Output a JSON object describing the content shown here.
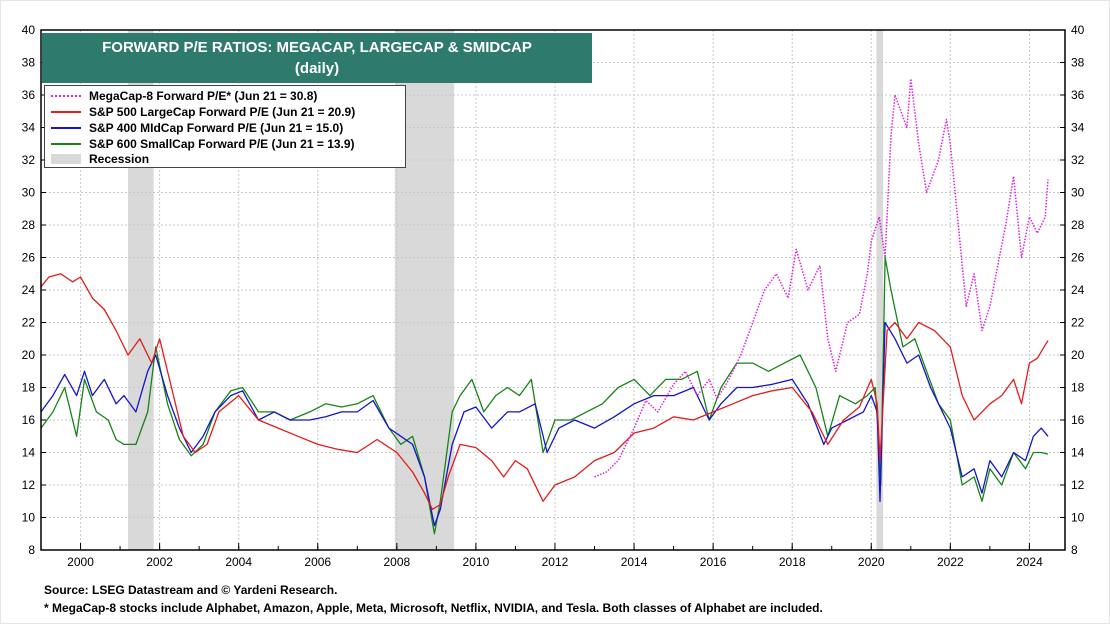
{
  "chart_data": {
    "type": "line",
    "title": "FORWARD P/E RATIOS: MEGACAP, LARGECAP & SMIDCAP",
    "subtitle": "(daily)",
    "xlim": [
      1999,
      2024.9
    ],
    "ylim": [
      8,
      40
    ],
    "x_ticks": [
      "2000",
      "2002",
      "2004",
      "2006",
      "2008",
      "2010",
      "2012",
      "2014",
      "2016",
      "2018",
      "2020",
      "2022",
      "2024"
    ],
    "x_tick_values": [
      2000,
      2002,
      2004,
      2006,
      2008,
      2010,
      2012,
      2014,
      2016,
      2018,
      2020,
      2022,
      2024
    ],
    "y_ticks": [
      8,
      10,
      12,
      14,
      16,
      18,
      20,
      22,
      24,
      26,
      28,
      30,
      32,
      34,
      36,
      38,
      40
    ],
    "grid": true,
    "legend_position": "top-left",
    "recessions": [
      [
        2001.2,
        2001.85
      ],
      [
        2007.95,
        2009.45
      ],
      [
        2020.13,
        2020.3
      ]
    ],
    "series": [
      {
        "name": "MegaCap-8 Forward P/E* (Jun 21 = 30.8)",
        "color": "#dd22dd",
        "style": "dotted",
        "x": [
          2013.0,
          2013.3,
          2013.6,
          2014.0,
          2014.3,
          2014.6,
          2015.0,
          2015.3,
          2015.6,
          2015.9,
          2016.1,
          2016.4,
          2016.7,
          2017.0,
          2017.3,
          2017.6,
          2017.9,
          2018.1,
          2018.4,
          2018.7,
          2018.9,
          2019.1,
          2019.4,
          2019.7,
          2019.9,
          2020.0,
          2020.2,
          2020.35,
          2020.5,
          2020.6,
          2020.75,
          2020.9,
          2021.0,
          2021.2,
          2021.4,
          2021.7,
          2021.9,
          2022.0,
          2022.2,
          2022.4,
          2022.6,
          2022.8,
          2023.0,
          2023.2,
          2023.4,
          2023.6,
          2023.8,
          2024.0,
          2024.2,
          2024.4,
          2024.47
        ],
        "y": [
          12.5,
          12.8,
          13.5,
          15.5,
          17.2,
          16.5,
          18.2,
          19.0,
          17.5,
          18.5,
          17.3,
          18.5,
          20.0,
          22.0,
          24.0,
          25.0,
          23.5,
          26.5,
          24.0,
          25.5,
          21.0,
          19.0,
          22.0,
          22.5,
          25.0,
          27.0,
          28.5,
          26.0,
          33.5,
          36.0,
          35.0,
          34.0,
          37.0,
          33.0,
          30.0,
          32.0,
          34.5,
          33.0,
          28.0,
          23.0,
          25.0,
          21.5,
          23.0,
          25.5,
          28.0,
          31.0,
          26.0,
          28.5,
          27.5,
          28.5,
          30.8
        ]
      },
      {
        "name": "S&P 500 LargeCap Forward P/E (Jun 21 = 20.9)",
        "color": "#e11d1d",
        "style": "solid",
        "x": [
          1999.0,
          1999.2,
          1999.5,
          1999.8,
          2000.0,
          2000.3,
          2000.6,
          2000.9,
          2001.2,
          2001.5,
          2001.8,
          2002.0,
          2002.3,
          2002.6,
          2002.9,
          2003.2,
          2003.5,
          2004.0,
          2004.5,
          2005.0,
          2005.5,
          2006.0,
          2006.5,
          2007.0,
          2007.5,
          2008.0,
          2008.4,
          2008.7,
          2008.9,
          2009.1,
          2009.3,
          2009.6,
          2010.0,
          2010.4,
          2010.7,
          2011.0,
          2011.3,
          2011.7,
          2012.0,
          2012.5,
          2013.0,
          2013.5,
          2014.0,
          2014.5,
          2015.0,
          2015.5,
          2016.0,
          2016.5,
          2017.0,
          2017.5,
          2018.0,
          2018.5,
          2018.9,
          2019.3,
          2019.7,
          2020.0,
          2020.15,
          2020.22,
          2020.4,
          2020.6,
          2020.9,
          2021.2,
          2021.6,
          2022.0,
          2022.3,
          2022.6,
          2022.8,
          2023.0,
          2023.3,
          2023.6,
          2023.8,
          2024.0,
          2024.2,
          2024.47
        ],
        "y": [
          24.2,
          24.8,
          25.0,
          24.5,
          24.8,
          23.5,
          22.8,
          21.5,
          20.0,
          21.0,
          19.5,
          21.0,
          18.0,
          15.0,
          14.0,
          14.5,
          16.5,
          17.5,
          16.0,
          15.5,
          15.0,
          14.5,
          14.2,
          14.0,
          14.8,
          14.0,
          12.8,
          11.5,
          10.5,
          10.8,
          12.5,
          14.5,
          14.3,
          13.5,
          12.5,
          13.5,
          13.0,
          11.0,
          12.0,
          12.5,
          13.5,
          14.0,
          15.2,
          15.5,
          16.2,
          16.0,
          16.5,
          17.0,
          17.5,
          17.8,
          18.0,
          16.5,
          14.5,
          16.0,
          16.8,
          18.5,
          17.0,
          13.5,
          21.5,
          22.0,
          21.0,
          22.0,
          21.5,
          20.5,
          17.5,
          16.0,
          16.5,
          17.0,
          17.5,
          18.5,
          17.0,
          19.5,
          19.8,
          20.9
        ]
      },
      {
        "name": "S&P 400 MidCap Forward P/E (Jun 21 = 15.0)",
        "color": "#1414cc",
        "style": "solid",
        "x": [
          1999.0,
          1999.3,
          1999.6,
          1999.9,
          2000.1,
          2000.3,
          2000.6,
          2000.9,
          2001.1,
          2001.4,
          2001.7,
          2001.9,
          2002.2,
          2002.5,
          2002.8,
          2003.1,
          2003.4,
          2003.8,
          2004.1,
          2004.5,
          2004.9,
          2005.3,
          2005.8,
          2006.2,
          2006.6,
          2007.0,
          2007.4,
          2007.8,
          2008.1,
          2008.4,
          2008.7,
          2008.95,
          2009.1,
          2009.4,
          2009.7,
          2010.0,
          2010.4,
          2010.8,
          2011.1,
          2011.5,
          2011.8,
          2012.1,
          2012.5,
          2013.0,
          2013.5,
          2014.0,
          2014.5,
          2015.0,
          2015.5,
          2015.9,
          2016.2,
          2016.6,
          2017.0,
          2017.5,
          2018.0,
          2018.4,
          2018.8,
          2019.0,
          2019.4,
          2019.8,
          2020.0,
          2020.15,
          2020.22,
          2020.35,
          2020.6,
          2020.9,
          2021.2,
          2021.5,
          2021.8,
          2022.0,
          2022.3,
          2022.6,
          2022.8,
          2023.0,
          2023.3,
          2023.6,
          2023.9,
          2024.1,
          2024.3,
          2024.47
        ],
        "y": [
          16.5,
          17.5,
          18.8,
          17.5,
          19.0,
          17.5,
          18.5,
          17.0,
          17.5,
          16.5,
          19.0,
          20.0,
          17.5,
          15.5,
          14.0,
          15.0,
          16.5,
          17.5,
          17.8,
          16.0,
          16.5,
          16.0,
          16.0,
          16.2,
          16.5,
          16.5,
          17.2,
          15.5,
          15.0,
          14.5,
          12.5,
          9.5,
          10.5,
          14.5,
          16.5,
          16.8,
          15.5,
          16.5,
          16.5,
          17.0,
          14.0,
          15.5,
          16.0,
          15.5,
          16.2,
          17.0,
          17.5,
          17.5,
          18.0,
          16.0,
          17.0,
          18.0,
          18.0,
          18.2,
          18.5,
          17.0,
          14.5,
          15.5,
          16.0,
          16.5,
          17.5,
          16.5,
          11.0,
          22.0,
          21.0,
          19.5,
          20.0,
          18.0,
          16.5,
          15.5,
          12.5,
          13.0,
          11.5,
          13.5,
          12.5,
          14.0,
          13.5,
          15.0,
          15.5,
          15.0
        ]
      },
      {
        "name": "S&P 600 SmallCap Forward P/E (Jun 21 = 13.9)",
        "color": "#178417",
        "style": "solid",
        "x": [
          1999.0,
          1999.3,
          1999.6,
          1999.9,
          2000.1,
          2000.4,
          2000.7,
          2000.9,
          2001.1,
          2001.4,
          2001.7,
          2001.9,
          2002.2,
          2002.5,
          2002.8,
          2003.1,
          2003.4,
          2003.8,
          2004.1,
          2004.5,
          2004.9,
          2005.3,
          2005.8,
          2006.2,
          2006.6,
          2007.0,
          2007.4,
          2007.8,
          2008.1,
          2008.4,
          2008.7,
          2008.95,
          2009.1,
          2009.4,
          2009.6,
          2009.9,
          2010.2,
          2010.5,
          2010.8,
          2011.1,
          2011.4,
          2011.7,
          2012.0,
          2012.4,
          2012.8,
          2013.2,
          2013.6,
          2014.0,
          2014.4,
          2014.8,
          2015.2,
          2015.6,
          2015.9,
          2016.2,
          2016.6,
          2017.0,
          2017.4,
          2017.8,
          2018.2,
          2018.6,
          2018.9,
          2019.2,
          2019.6,
          2019.9,
          2020.1,
          2020.18,
          2020.24,
          2020.35,
          2020.5,
          2020.8,
          2021.1,
          2021.4,
          2021.7,
          2022.0,
          2022.3,
          2022.6,
          2022.8,
          2023.0,
          2023.3,
          2023.6,
          2023.9,
          2024.1,
          2024.3,
          2024.47
        ],
        "y": [
          15.5,
          16.5,
          18.0,
          15.0,
          18.5,
          16.5,
          16.0,
          14.8,
          14.5,
          14.5,
          16.5,
          20.5,
          17.0,
          14.8,
          13.8,
          14.5,
          16.5,
          17.8,
          18.0,
          16.5,
          16.5,
          16.0,
          16.5,
          17.0,
          16.8,
          17.0,
          17.5,
          15.5,
          14.5,
          15.0,
          12.5,
          9.0,
          11.0,
          16.5,
          17.5,
          18.5,
          16.5,
          17.5,
          18.0,
          17.5,
          18.5,
          14.0,
          16.0,
          16.0,
          16.5,
          17.0,
          18.0,
          18.5,
          17.5,
          18.5,
          18.5,
          19.0,
          16.0,
          18.0,
          19.5,
          19.5,
          19.0,
          19.5,
          20.0,
          18.0,
          15.0,
          17.5,
          17.0,
          17.5,
          18.0,
          15.0,
          12.0,
          26.0,
          24.0,
          20.5,
          21.0,
          19.0,
          17.0,
          16.0,
          12.0,
          12.5,
          11.0,
          13.0,
          12.0,
          14.0,
          13.0,
          14.0,
          14.0,
          13.9
        ]
      }
    ]
  },
  "legend": {
    "items": [
      {
        "label": "MegaCap-8 Forward P/E* (Jun 21 = 30.8)",
        "color": "#dd22dd",
        "style": "dotted"
      },
      {
        "label": "S&P 500 LargeCap Forward P/E (Jun 21 = 20.9)",
        "color": "#e11d1d",
        "style": "solid"
      },
      {
        "label": "S&P 400 MIdCap Forward P/E (Jun 21 = 15.0)",
        "color": "#1414cc",
        "style": "solid"
      },
      {
        "label": "S&P 600 SmallCap Forward P/E (Jun 21 = 13.9)",
        "color": "#178417",
        "style": "solid"
      },
      {
        "label": "Recession",
        "color": "#d9d9d9",
        "style": "box"
      }
    ]
  },
  "colors": {
    "title_bg": "#2e7b6e",
    "recession": "#d9d9d9",
    "grid": "#c8c8c8"
  },
  "footnotes": {
    "source": "Source: LSEG Datastream and © Yardeni Research.",
    "note": "* MegaCap-8 stocks include Alphabet, Amazon, Apple, Meta, Microsoft, Netflix, NVIDIA, and Tesla. Both classes of Alphabet are included."
  }
}
